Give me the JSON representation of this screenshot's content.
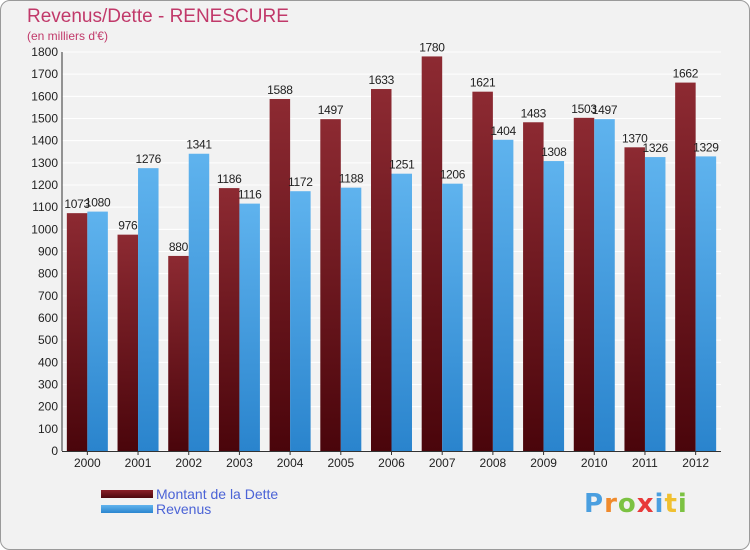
{
  "title": "Revenus/Dette - RENESCURE",
  "subtitle": "(en milliers d'€)",
  "chart_data": {
    "type": "bar",
    "categories": [
      "2000",
      "2001",
      "2002",
      "2003",
      "2004",
      "2005",
      "2006",
      "2007",
      "2008",
      "2009",
      "2010",
      "2011",
      "2012"
    ],
    "series": [
      {
        "name": "Montant de la Dette",
        "values": [
          1073,
          976,
          880,
          1186,
          1588,
          1497,
          1633,
          1780,
          1621,
          1483,
          1503,
          1370,
          1662
        ],
        "color": "#6b1018"
      },
      {
        "name": "Revenus",
        "values": [
          1080,
          1276,
          1341,
          1116,
          1172,
          1188,
          1251,
          1206,
          1404,
          1308,
          1497,
          1326,
          1329
        ],
        "color": "#3f9de3"
      }
    ],
    "ylim": [
      0,
      1800
    ],
    "yticks": [
      0,
      100,
      200,
      300,
      400,
      500,
      600,
      700,
      800,
      900,
      1000,
      1100,
      1200,
      1300,
      1400,
      1500,
      1600,
      1700,
      1800
    ],
    "grid": true,
    "legend": "bottom-left"
  },
  "legend": {
    "debt_label": "Montant de la Dette",
    "revenue_label": "Revenus"
  },
  "logo": {
    "letters": [
      "P",
      "r",
      "o",
      "x",
      "i",
      "t",
      "i"
    ],
    "colors": [
      "#4a9fe0",
      "#f08a2c",
      "#7cc242",
      "#e83a3a",
      "#4a9fe0",
      "#f0c030",
      "#7cc242"
    ]
  }
}
